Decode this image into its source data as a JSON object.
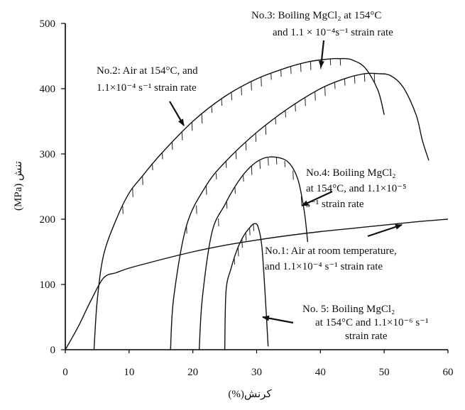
{
  "chart_data": {
    "type": "line",
    "title": "",
    "xlabel": "کرنش(%)",
    "ylabel": "(MPa) تنش",
    "xlim": [
      0,
      60
    ],
    "ylim": [
      0,
      500
    ],
    "x_ticks": [
      "0",
      "10",
      "20",
      "30",
      "40",
      "50",
      "60"
    ],
    "y_ticks": [
      "0",
      "100",
      "200",
      "300",
      "400",
      "500"
    ],
    "grid": false,
    "series": [
      {
        "name": "No.1",
        "x": [
          0,
          2,
          4,
          6,
          8,
          10,
          15,
          20,
          25,
          30,
          35,
          40,
          45,
          50,
          55,
          60
        ],
        "y": [
          0,
          35,
          75,
          110,
          118,
          125,
          138,
          150,
          160,
          168,
          175,
          181,
          186,
          191,
          196,
          200
        ]
      },
      {
        "name": "No.2",
        "x": [
          4.5,
          5,
          6,
          8,
          10,
          12,
          15,
          20,
          25,
          30,
          35,
          38,
          40,
          42,
          43,
          44,
          45,
          47,
          49,
          50
        ],
        "y": [
          0,
          75,
          145,
          200,
          240,
          265,
          300,
          350,
          388,
          415,
          433,
          441,
          444,
          446,
          446,
          446,
          444,
          432,
          398,
          360
        ]
      },
      {
        "name": "No.3",
        "x": [
          16.5,
          17,
          19,
          22,
          25,
          30,
          35,
          40,
          44,
          47,
          49,
          51,
          53,
          55,
          56,
          57
        ],
        "y": [
          0,
          80,
          190,
          250,
          287,
          333,
          370,
          400,
          416,
          423,
          423,
          420,
          402,
          360,
          320,
          290
        ]
      },
      {
        "name": "No.4",
        "x": [
          21,
          21.5,
          23,
          25,
          27,
          29,
          31,
          33,
          35,
          36.5,
          37.5,
          38
        ],
        "y": [
          0,
          80,
          180,
          222,
          256,
          280,
          293,
          295,
          287,
          260,
          210,
          165
        ]
      },
      {
        "name": "No. 5",
        "x": [
          25,
          25.2,
          26,
          27,
          28,
          29,
          29.6,
          30.2,
          30.8,
          31.3,
          31.8
        ],
        "y": [
          0,
          90,
          125,
          155,
          175,
          188,
          193,
          189,
          160,
          90,
          5
        ]
      }
    ],
    "annotations": [
      {
        "lines": [
          "No.3: Boiling MgCl₂ at 154°C",
          "and 1.1 × 10⁻⁴s⁻¹ strain rate"
        ]
      },
      {
        "lines": [
          "No.2: Air at 154°C, and",
          "1.1×10⁻⁴ s⁻¹ strain rate"
        ]
      },
      {
        "lines": [
          "No.4:  Boiling  MgCl₂",
          "at 154°C, and 1.1×10⁻⁵",
          "s⁻¹ strain rate"
        ]
      },
      {
        "lines": [
          "No.1: Air at room temperature,",
          "and 1.1×10⁻⁴ s⁻¹ strain rate"
        ]
      },
      {
        "lines": [
          "No. 5: Boiling MgCl₂",
          "at 154°C  and 1.1×10⁻⁶ s⁻¹",
          "strain rate"
        ]
      }
    ]
  }
}
